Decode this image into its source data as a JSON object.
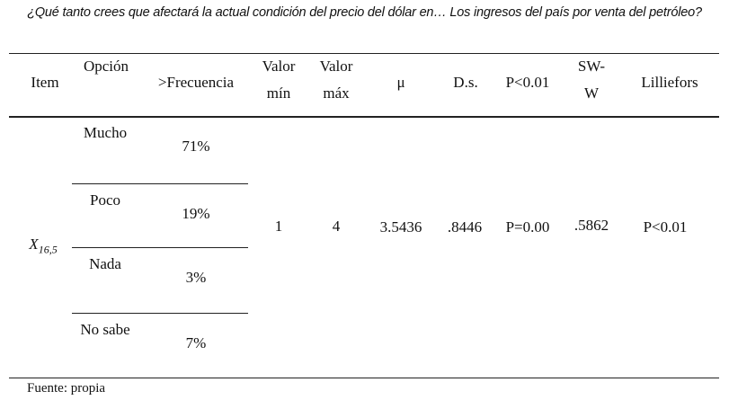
{
  "title": "¿Qué tanto crees que afectará la actual condición del precio del dólar en… Los ingresos del país por venta del petróleo?",
  "table": {
    "headers": [
      "Item",
      "Opción",
      ">Frecuencia",
      "Valor mín",
      "Valor máx",
      "μ",
      "D.s.",
      "P<0.01",
      "SW-W",
      "Lilliefors"
    ],
    "item": {
      "base": "X",
      "sub": "16,5"
    },
    "rows": [
      {
        "option": "Mucho",
        "frequency": "71%"
      },
      {
        "option": "Poco",
        "frequency": "19%"
      },
      {
        "option": "Nada",
        "frequency": "3%"
      },
      {
        "option": "No sabe",
        "frequency": "7%"
      }
    ],
    "stats": {
      "min": "1",
      "max": "4",
      "mean": "3.5436",
      "sd": ".8446",
      "p": "P=0.00",
      "sww": ".5862",
      "lilliefors": "P<0.01"
    }
  },
  "footer": "Fuente: propia"
}
